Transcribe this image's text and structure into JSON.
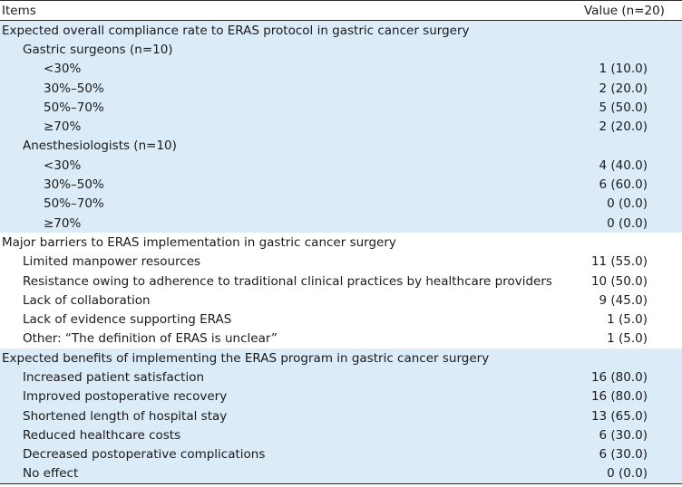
{
  "header": {
    "items": "Items",
    "value": "Value (n=20)"
  },
  "sections": [
    {
      "title": "Expected overall compliance rate to ERAS protocol in gastric cancer surgery",
      "groups": [
        {
          "title": "Gastric surgeons (n=10)",
          "rows": [
            {
              "label": "<30%",
              "value": "1 (10.0)"
            },
            {
              "label": "30%–50%",
              "value": "2 (20.0)"
            },
            {
              "label": "50%–70%",
              "value": "5 (50.0)"
            },
            {
              "label": "≥70%",
              "value": "2 (20.0)"
            }
          ]
        },
        {
          "title": "Anesthesiologists (n=10)",
          "rows": [
            {
              "label": "<30%",
              "value": "4 (40.0)"
            },
            {
              "label": "30%–50%",
              "value": "6 (60.0)"
            },
            {
              "label": "50%–70%",
              "value": "0 (0.0)"
            },
            {
              "label": "≥70%",
              "value": "0 (0.0)"
            }
          ]
        }
      ]
    },
    {
      "title": "Major barriers to ERAS implementation in gastric cancer surgery",
      "rows": [
        {
          "label": "Limited manpower resources",
          "value": "11 (55.0)"
        },
        {
          "label": "Resistance owing to adherence to traditional clinical practices by healthcare providers",
          "value": "10 (50.0)"
        },
        {
          "label": "Lack of collaboration",
          "value": "9 (45.0)"
        },
        {
          "label": "Lack of evidence supporting ERAS",
          "value": "1 (5.0)"
        },
        {
          "label": "Other: “The definition of ERAS is unclear”",
          "value": "1 (5.0)"
        }
      ]
    },
    {
      "title": "Expected benefits of implementing the ERAS program in gastric cancer surgery",
      "rows": [
        {
          "label": "Increased patient satisfaction",
          "value": "16 (80.0)"
        },
        {
          "label": "Improved postoperative recovery",
          "value": "16 (80.0)"
        },
        {
          "label": "Shortened length of hospital stay",
          "value": "13 (65.0)"
        },
        {
          "label": "Reduced healthcare costs",
          "value": "6 (30.0)"
        },
        {
          "label": "Decreased postoperative complications",
          "value": "6 (30.0)"
        },
        {
          "label": "No effect",
          "value": "0 (0.0)"
        }
      ]
    }
  ],
  "colors": {
    "shade": "#dcebf8",
    "rule": "#2b2b2b",
    "text": "#1a1a1a"
  }
}
